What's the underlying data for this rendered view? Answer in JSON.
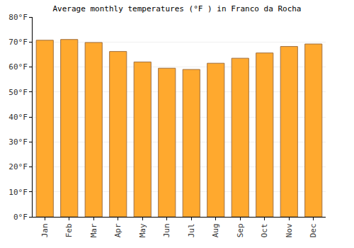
{
  "chart_data": {
    "type": "bar",
    "title": "Average monthly temperatures (°F ) in Franco da Rocha",
    "categories": [
      "Jan",
      "Feb",
      "Mar",
      "Apr",
      "May",
      "Jun",
      "Jul",
      "Aug",
      "Sep",
      "Oct",
      "Nov",
      "Dec"
    ],
    "values": [
      70.7,
      71.0,
      69.8,
      66.2,
      62.0,
      59.5,
      59.0,
      61.5,
      63.5,
      65.6,
      68.2,
      69.2
    ],
    "color": "#ffa92e",
    "ylim": [
      0,
      80
    ],
    "yticks": [
      {
        "value": 0,
        "label": "0°F"
      },
      {
        "value": 10,
        "label": "10°F"
      },
      {
        "value": 20,
        "label": "20°F"
      },
      {
        "value": 30,
        "label": "30°F"
      },
      {
        "value": 40,
        "label": "40°F"
      },
      {
        "value": 50,
        "label": "50°F"
      },
      {
        "value": 60,
        "label": "60°F"
      },
      {
        "value": 70,
        "label": "70°F"
      },
      {
        "value": 80,
        "label": "80°F"
      }
    ],
    "grid": true
  }
}
